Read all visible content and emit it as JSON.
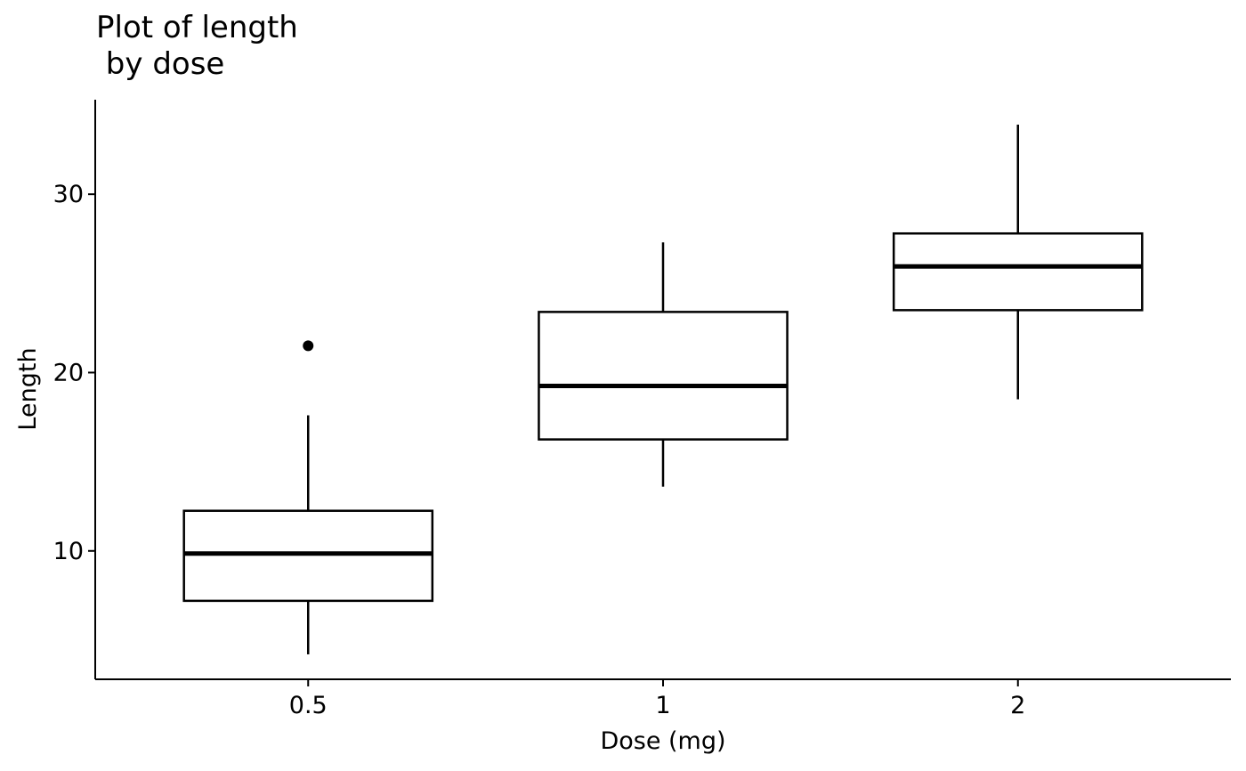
{
  "chart_data": {
    "type": "box",
    "title_lines": [
      "Plot of length",
      " by dose"
    ],
    "xlabel": "Dose (mg)",
    "ylabel": "Length",
    "categories": [
      "0.5",
      "1",
      "2"
    ],
    "ylim": [
      2.8,
      35.3
    ],
    "yticks": [
      10,
      20,
      30
    ],
    "grid": false,
    "legend": "none",
    "boxes": [
      {
        "category": "0.5",
        "whisker_low": 4.2,
        "q1": 7.2,
        "median": 9.85,
        "q3": 12.25,
        "whisker_high": 17.6,
        "outliers": [
          21.5
        ]
      },
      {
        "category": "1",
        "whisker_low": 13.6,
        "q1": 16.25,
        "median": 19.25,
        "q3": 23.4,
        "whisker_high": 27.3,
        "outliers": []
      },
      {
        "category": "2",
        "whisker_low": 18.5,
        "q1": 23.5,
        "median": 25.95,
        "q3": 27.8,
        "whisker_high": 33.9,
        "outliers": []
      }
    ],
    "colors": {
      "stroke": "#000000",
      "fill": "#ffffff",
      "background": "#ffffff"
    }
  }
}
